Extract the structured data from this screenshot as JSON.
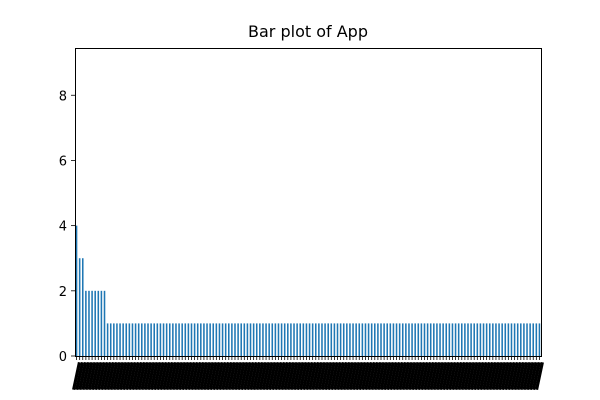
{
  "chart_data": {
    "type": "bar",
    "title": "Bar plot of App",
    "xlabel": "",
    "ylabel": "",
    "ylim": [
      0,
      9.45
    ],
    "yticks": [
      0,
      2,
      4,
      6,
      8
    ],
    "bar_color": "#1f77b4",
    "grid": false,
    "legend": "none",
    "x_tick_labels_note": "one rotated category label per bar; labels overlap and are illegible",
    "values": [
      4,
      3,
      3,
      2,
      2,
      2,
      2,
      2,
      2,
      2,
      1,
      1,
      1,
      1,
      1,
      1,
      1,
      1,
      1,
      1,
      1,
      1,
      1,
      1,
      1,
      1,
      1,
      1,
      1,
      1,
      1,
      1,
      1,
      1,
      1,
      1,
      1,
      1,
      1,
      1,
      1,
      1,
      1,
      1,
      1,
      1,
      1,
      1,
      1,
      1,
      1,
      1,
      1,
      1,
      1,
      1,
      1,
      1,
      1,
      1,
      1,
      1,
      1,
      1,
      1,
      1,
      1,
      1,
      1,
      1,
      1,
      1,
      1,
      1,
      1,
      1,
      1,
      1,
      1,
      1,
      1,
      1,
      1,
      1,
      1,
      1,
      1,
      1,
      1,
      1,
      1,
      1,
      1,
      1,
      1,
      1,
      1,
      1,
      1,
      1,
      1,
      1,
      1,
      1,
      1,
      1,
      1,
      1,
      1,
      1,
      1,
      1,
      1,
      1,
      1,
      1,
      1,
      1,
      1,
      1,
      1,
      1,
      1,
      1,
      1,
      1,
      1,
      1,
      1,
      1,
      1,
      1,
      1,
      1,
      1,
      1,
      1,
      1,
      1,
      1,
      1,
      1,
      1,
      1,
      1,
      1,
      1,
      1,
      1,
      1
    ]
  }
}
